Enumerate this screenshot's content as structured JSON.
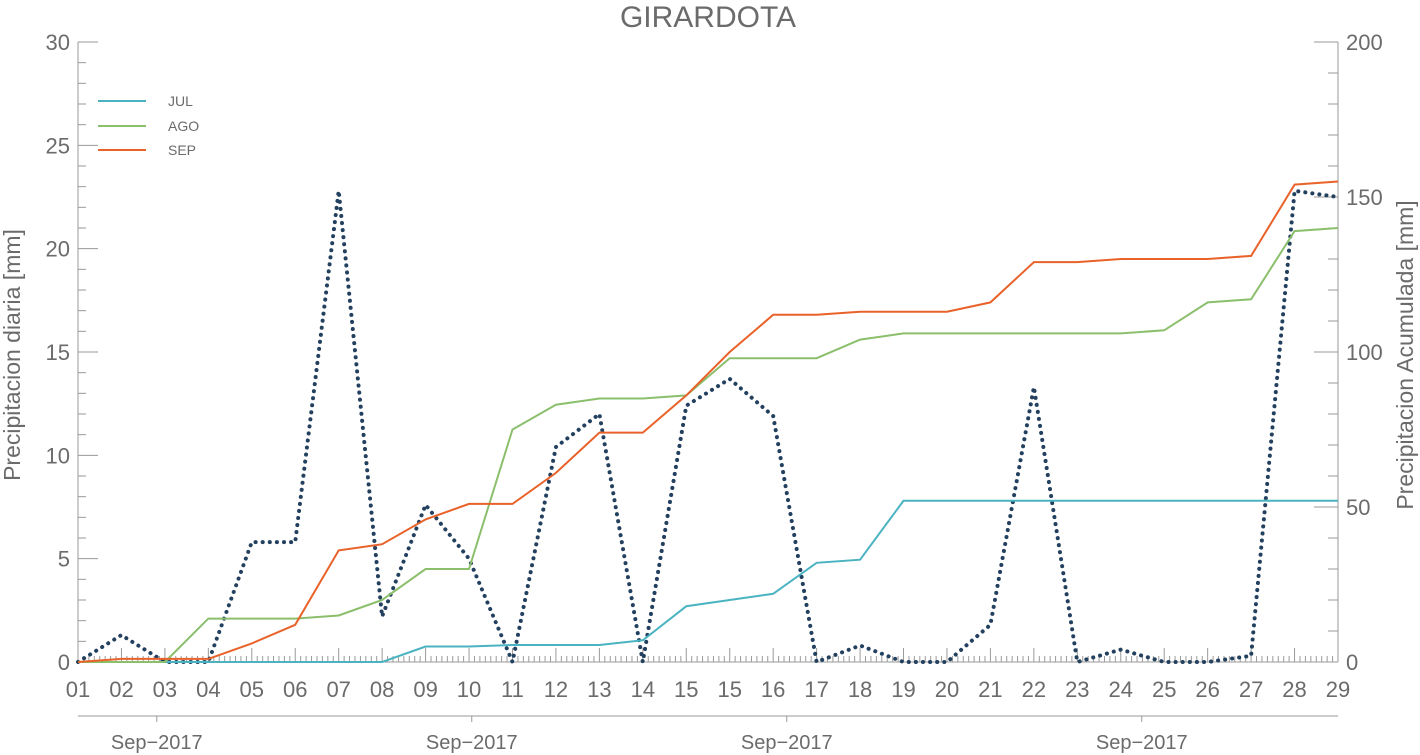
{
  "chart_data": {
    "type": "line",
    "title": "GIRARDOTA",
    "ylabel_left": "Precipitacion diaria [mm]",
    "ylabel_right": "Precipitacion Acumulada [mm]",
    "ylim_left": [
      0,
      30
    ],
    "ylim_right": [
      0,
      200
    ],
    "yticks_left": [
      "0",
      "5",
      "10",
      "15",
      "20",
      "25",
      "30"
    ],
    "yticks_right": [
      "0",
      "50",
      "100",
      "150",
      "200"
    ],
    "x_tick_labels": [
      "01",
      "02",
      "03",
      "04",
      "05",
      "06",
      "07",
      "08",
      "09",
      "10",
      "11",
      "12",
      "13",
      "14",
      "15",
      "15",
      "16",
      "17",
      "18",
      "19",
      "20",
      "21",
      "22",
      "23",
      "24",
      "25",
      "26",
      "27",
      "28",
      "29"
    ],
    "x_month_labels": [
      "Sep−2017",
      "Sep−2017",
      "Sep−2017",
      "Sep−2017"
    ],
    "grid": false,
    "legend_position": "top-left",
    "series": [
      {
        "name": "JUL",
        "axis": "right",
        "style": "solid",
        "color": "#4ab3c2",
        "values": [
          0,
          0,
          0,
          0,
          0,
          0,
          0,
          0,
          5,
          5,
          5.5,
          5.5,
          5.5,
          7,
          18,
          20,
          22,
          32,
          33,
          52,
          52,
          52,
          52,
          52,
          52,
          52,
          52,
          52,
          52,
          52
        ]
      },
      {
        "name": "AGO",
        "axis": "right",
        "style": "solid",
        "color": "#8bbf6c",
        "values": [
          0,
          0,
          0,
          14,
          14,
          14,
          15,
          20,
          30,
          30,
          75,
          83,
          85,
          85,
          86,
          98,
          98,
          98,
          104,
          106,
          106,
          106,
          106,
          106,
          106,
          107,
          116,
          117,
          139,
          140
        ]
      },
      {
        "name": "SEP",
        "axis": "right",
        "style": "solid",
        "color": "#e8622a",
        "values": [
          0,
          1,
          1,
          1,
          6,
          12,
          36,
          38,
          46,
          51,
          51,
          61,
          74,
          74,
          86,
          100,
          112,
          112,
          113,
          113,
          113,
          116,
          129,
          129,
          130,
          130,
          130,
          131,
          154,
          155
        ]
      },
      {
        "name": "",
        "axis": "left",
        "style": "dotted",
        "color": "#23415f",
        "values": [
          0,
          1.3,
          0,
          0,
          5.8,
          5.8,
          22.8,
          2.2,
          7.6,
          5,
          0,
          10.4,
          12,
          0,
          12.4,
          13.7,
          11.9,
          0,
          0.8,
          0,
          0,
          1.8,
          13.3,
          0,
          0.6,
          0,
          0,
          0.3,
          22.8,
          22.5
        ]
      }
    ]
  }
}
